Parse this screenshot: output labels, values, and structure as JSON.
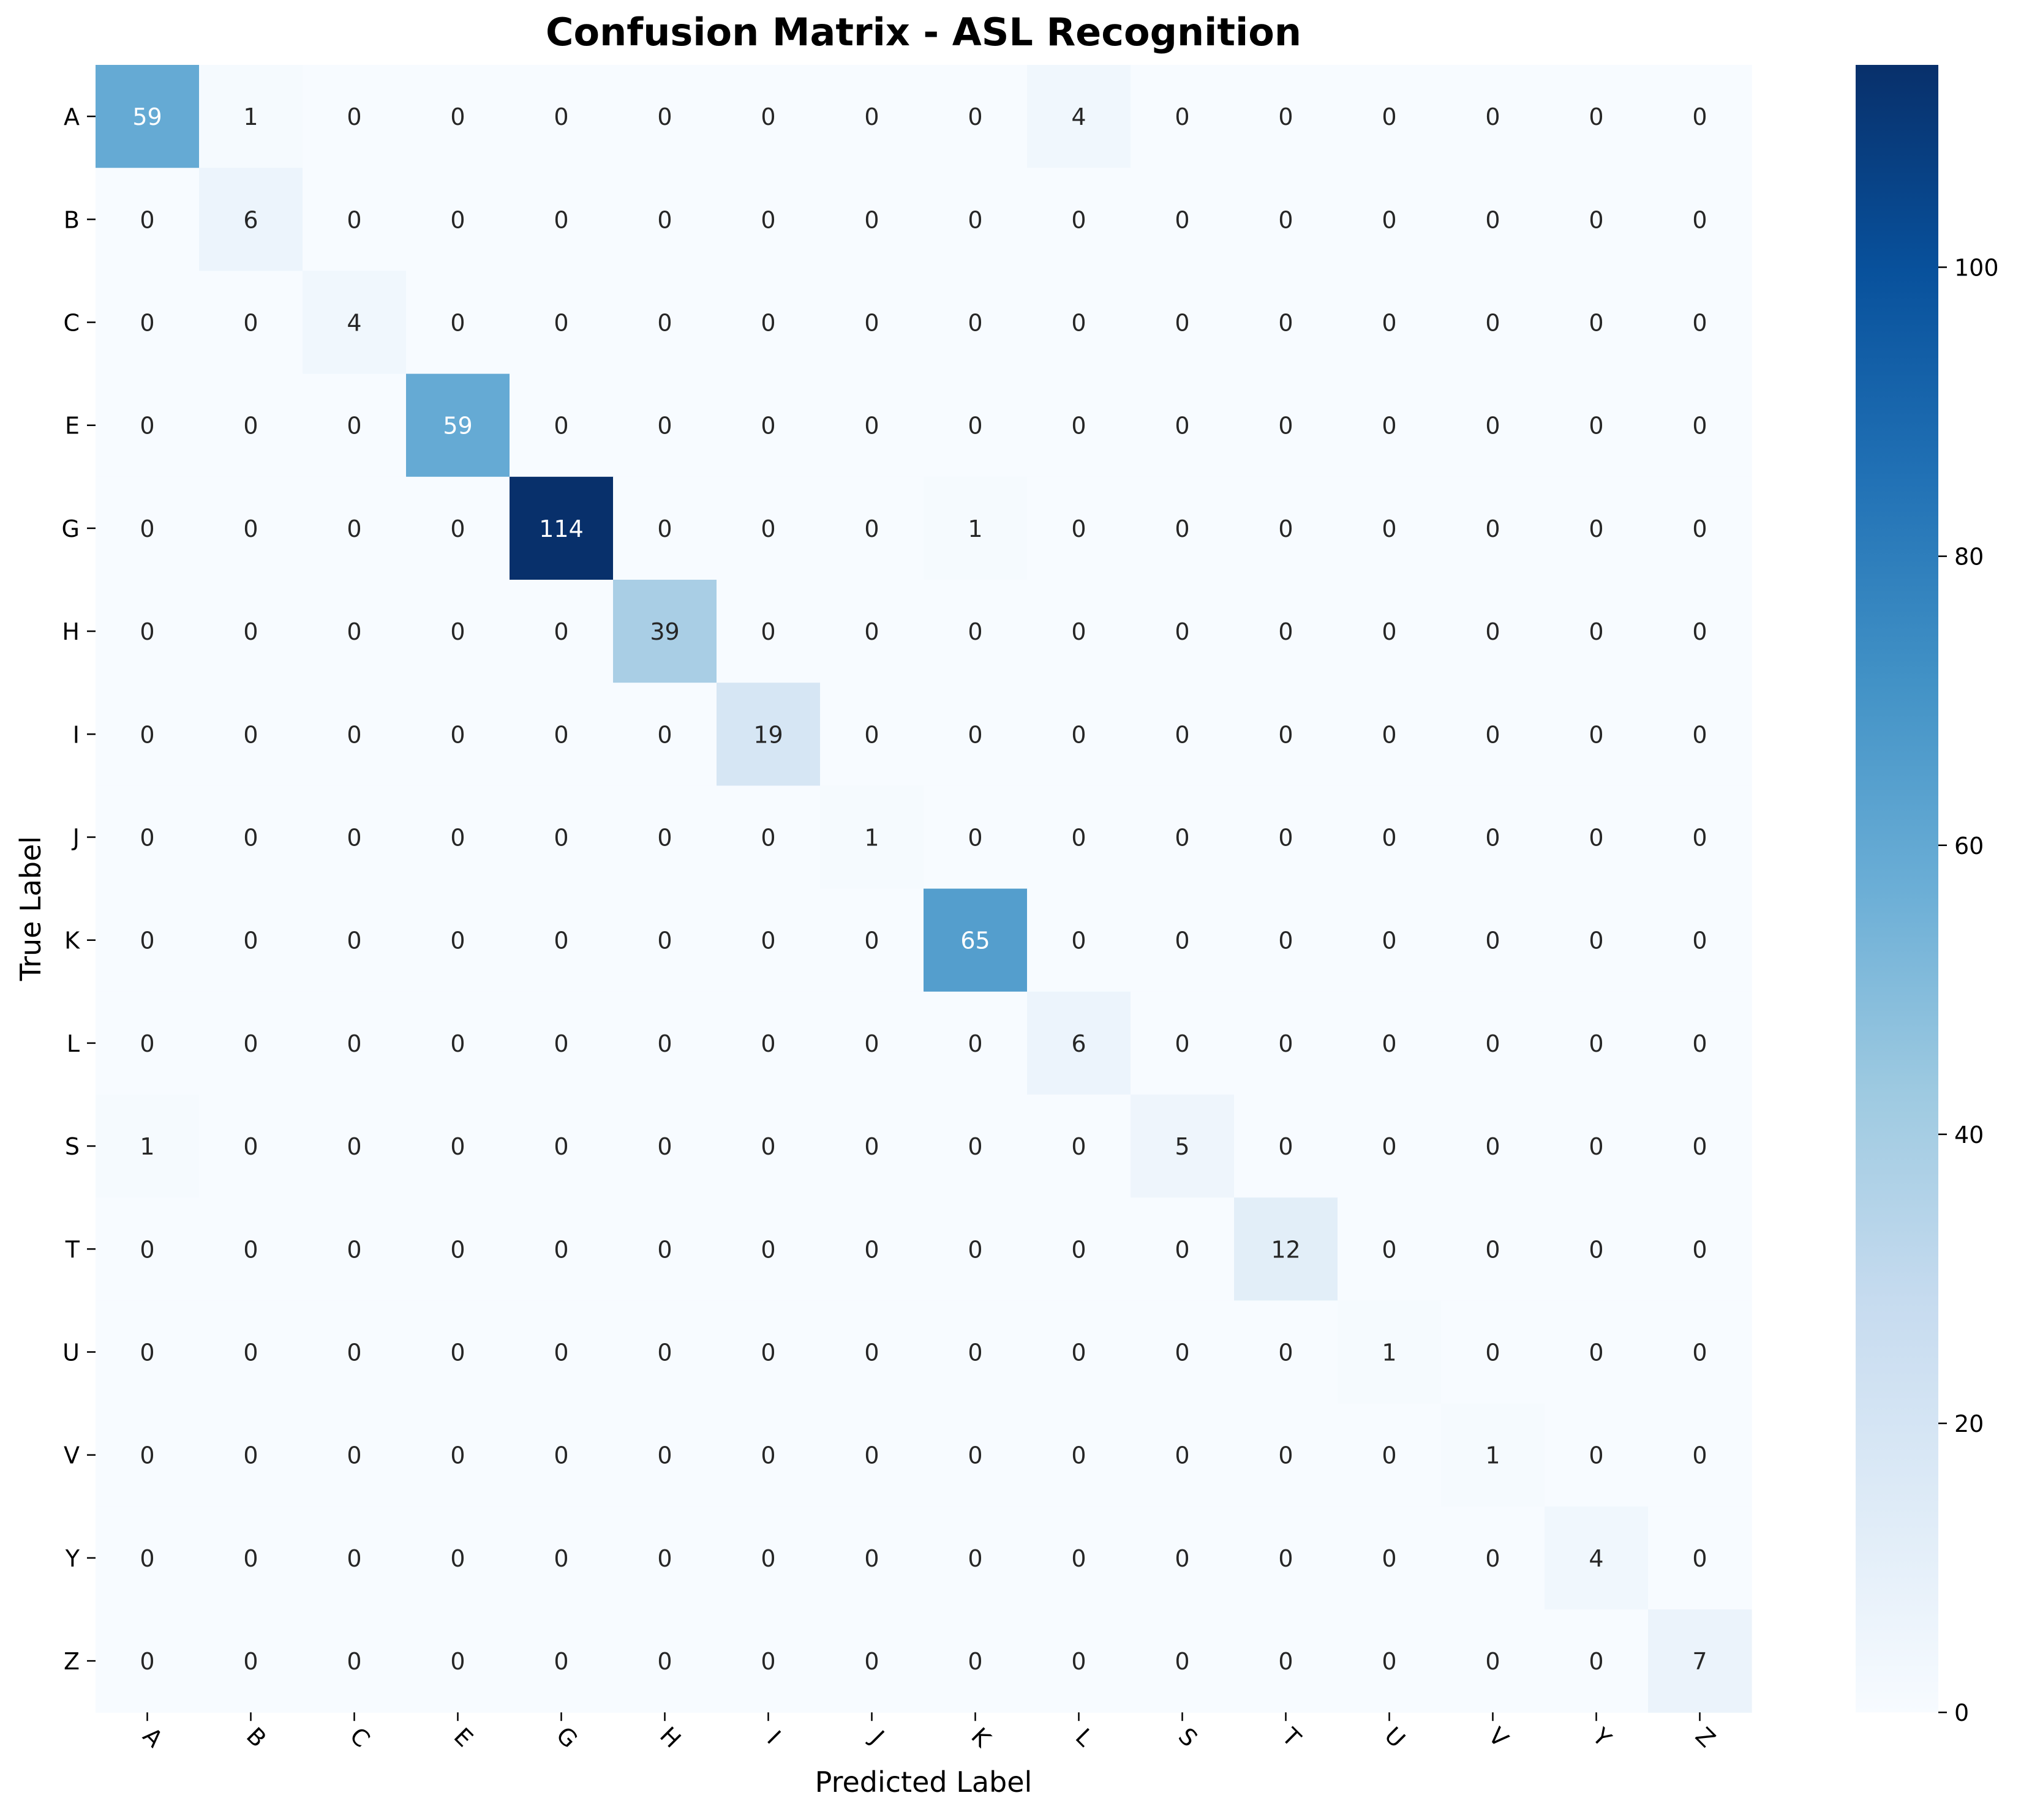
{
  "chart_data": {
    "type": "heatmap",
    "title": "Confusion Matrix - ASL Recognition",
    "xlabel": "Predicted Label",
    "ylabel": "True Label",
    "row_labels": [
      "A",
      "B",
      "C",
      "E",
      "G",
      "H",
      "I",
      "J",
      "K",
      "L",
      "S",
      "T",
      "U",
      "V",
      "Y",
      "Z"
    ],
    "col_labels": [
      "A",
      "B",
      "C",
      "E",
      "G",
      "H",
      "I",
      "J",
      "K",
      "L",
      "S",
      "T",
      "U",
      "V",
      "Y",
      "Z"
    ],
    "values": [
      [
        59,
        1,
        0,
        0,
        0,
        0,
        0,
        0,
        0,
        4,
        0,
        0,
        0,
        0,
        0,
        0
      ],
      [
        0,
        6,
        0,
        0,
        0,
        0,
        0,
        0,
        0,
        0,
        0,
        0,
        0,
        0,
        0,
        0
      ],
      [
        0,
        0,
        4,
        0,
        0,
        0,
        0,
        0,
        0,
        0,
        0,
        0,
        0,
        0,
        0,
        0
      ],
      [
        0,
        0,
        0,
        59,
        0,
        0,
        0,
        0,
        0,
        0,
        0,
        0,
        0,
        0,
        0,
        0
      ],
      [
        0,
        0,
        0,
        0,
        114,
        0,
        0,
        0,
        1,
        0,
        0,
        0,
        0,
        0,
        0,
        0
      ],
      [
        0,
        0,
        0,
        0,
        0,
        39,
        0,
        0,
        0,
        0,
        0,
        0,
        0,
        0,
        0,
        0
      ],
      [
        0,
        0,
        0,
        0,
        0,
        0,
        19,
        0,
        0,
        0,
        0,
        0,
        0,
        0,
        0,
        0
      ],
      [
        0,
        0,
        0,
        0,
        0,
        0,
        0,
        1,
        0,
        0,
        0,
        0,
        0,
        0,
        0,
        0
      ],
      [
        0,
        0,
        0,
        0,
        0,
        0,
        0,
        0,
        65,
        0,
        0,
        0,
        0,
        0,
        0,
        0
      ],
      [
        0,
        0,
        0,
        0,
        0,
        0,
        0,
        0,
        0,
        6,
        0,
        0,
        0,
        0,
        0,
        0
      ],
      [
        1,
        0,
        0,
        0,
        0,
        0,
        0,
        0,
        0,
        0,
        5,
        0,
        0,
        0,
        0,
        0
      ],
      [
        0,
        0,
        0,
        0,
        0,
        0,
        0,
        0,
        0,
        0,
        0,
        12,
        0,
        0,
        0,
        0
      ],
      [
        0,
        0,
        0,
        0,
        0,
        0,
        0,
        0,
        0,
        0,
        0,
        0,
        1,
        0,
        0,
        0
      ],
      [
        0,
        0,
        0,
        0,
        0,
        0,
        0,
        0,
        0,
        0,
        0,
        0,
        0,
        1,
        0,
        0
      ],
      [
        0,
        0,
        0,
        0,
        0,
        0,
        0,
        0,
        0,
        0,
        0,
        0,
        0,
        0,
        4,
        0
      ],
      [
        0,
        0,
        0,
        0,
        0,
        0,
        0,
        0,
        0,
        0,
        0,
        0,
        0,
        0,
        0,
        7
      ]
    ],
    "colormap": "Blues",
    "colorbar": {
      "range": [
        0,
        114
      ],
      "ticks": [
        0,
        20,
        40,
        60,
        80,
        100
      ]
    },
    "grid": false
  }
}
